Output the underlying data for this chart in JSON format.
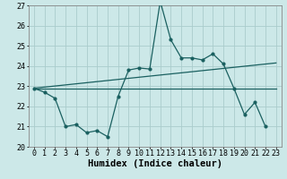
{
  "title": "",
  "xlabel": "Humidex (Indice chaleur)",
  "background_color": "#cce8e8",
  "grid_color": "#aacccc",
  "line_color": "#1a6060",
  "xlim": [
    -0.5,
    23.5
  ],
  "ylim": [
    20,
    27
  ],
  "yticks": [
    20,
    21,
    22,
    23,
    24,
    25,
    26,
    27
  ],
  "xticks": [
    0,
    1,
    2,
    3,
    4,
    5,
    6,
    7,
    8,
    9,
    10,
    11,
    12,
    13,
    14,
    15,
    16,
    17,
    18,
    19,
    20,
    21,
    22,
    23
  ],
  "series1_x": [
    0,
    1,
    2,
    3,
    4,
    5,
    6,
    7,
    8,
    9,
    10,
    11,
    12,
    13,
    14,
    15,
    16,
    17,
    18,
    19,
    20,
    21,
    22
  ],
  "series1_y": [
    22.9,
    22.7,
    22.4,
    21.0,
    21.1,
    20.7,
    20.8,
    20.5,
    22.5,
    23.8,
    23.9,
    23.85,
    27.2,
    25.3,
    24.4,
    24.4,
    24.3,
    24.6,
    24.1,
    22.9,
    21.6,
    22.2,
    21.0
  ],
  "series2_x": [
    0,
    23
  ],
  "series2_y": [
    22.9,
    22.9
  ],
  "series3_x": [
    0,
    23
  ],
  "series3_y": [
    22.9,
    24.15
  ],
  "font_size_label": 7.5,
  "font_size_tick": 6.0,
  "marker_size": 2.0,
  "line_width": 0.9
}
